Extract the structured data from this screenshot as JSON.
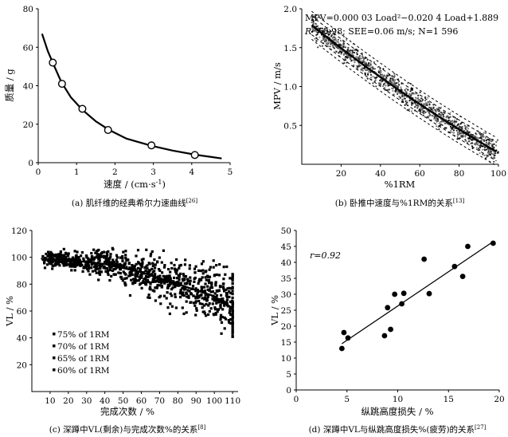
{
  "chart_data": [
    {
      "id": "a",
      "type": "scatter",
      "title": "",
      "caption": "(a) 肌纤维的经典希尔力速曲线",
      "caption_ref": "[26]",
      "xlabel_main": "速度 / (cm·s",
      "xlabel_sup": "-1",
      "xlabel_end": ")",
      "ylabel": "质量 / g",
      "xlim": [
        0,
        5
      ],
      "ylim": [
        0,
        80
      ],
      "xticks": [
        "0",
        "1",
        "2",
        "3",
        "4",
        "5"
      ],
      "yticks": [
        "0",
        "20",
        "40",
        "60",
        "80"
      ],
      "points": {
        "x": [
          0.38,
          0.62,
          1.15,
          1.82,
          2.95,
          4.08
        ],
        "y": [
          52,
          41,
          28,
          17,
          9,
          4
        ]
      },
      "curve": {
        "x": [
          0.1,
          0.25,
          0.4,
          0.6,
          0.85,
          1.15,
          1.5,
          1.85,
          2.3,
          2.95,
          3.5,
          4.08,
          4.5,
          4.78
        ],
        "y": [
          67,
          58,
          51,
          42,
          34,
          27.5,
          21.5,
          17,
          12.5,
          8.8,
          6.3,
          4.2,
          3,
          2.2
        ]
      }
    },
    {
      "id": "b",
      "type": "scatter",
      "caption": "(b) 卧推中速度与%1RM的关系",
      "caption_ref": "[13]",
      "xlabel": "%1RM",
      "ylabel": "MPV / m/s",
      "xlim": [
        0,
        100
      ],
      "ylim": [
        0,
        2.0
      ],
      "xticks": [
        "20",
        "40",
        "60",
        "80",
        "100"
      ],
      "yticks": [
        "0.5",
        "1.0",
        "1.5",
        "2.0"
      ],
      "equation_line1": "MPV=0.000 03 Load²−0.020 4 Load+1.889",
      "equation_line2_r": "R",
      "equation_line2_sup": "2",
      "equation_line2_rest": "=0.98; SEE=0.06 m/s; N=1 596",
      "fit": {
        "a": 3e-05,
        "b": -0.0204,
        "c": 1.889
      },
      "see": 0.06,
      "n": 1596,
      "x_range": [
        5,
        100
      ]
    },
    {
      "id": "c",
      "type": "scatter",
      "caption": "(c) 深蹲中VL(剩余)与完成次数%的关系",
      "caption_ref": "[8]",
      "xlabel": "完成次数 / %",
      "ylabel": "VL / %",
      "xlim": [
        0,
        113
      ],
      "ylim": [
        0,
        120
      ],
      "xticks": [
        "10",
        "20",
        "30",
        "40",
        "50",
        "60",
        "70",
        "80",
        "90",
        "100",
        "110"
      ],
      "yticks": [
        "20",
        "40",
        "60",
        "80",
        "100",
        "120"
      ],
      "legend": [
        "75% of 1RM",
        "70% of 1RM",
        "65% of 1RM",
        "60% of 1RM"
      ],
      "legend_position": "lower-left",
      "trend": {
        "x": [
          5,
          20,
          40,
          60,
          80,
          100,
          110
        ],
        "y": [
          99,
          98,
          95,
          89,
          80,
          71,
          62
        ]
      }
    },
    {
      "id": "d",
      "type": "scatter",
      "caption": "(d) 深蹲中VL与纵跳高度损失%(疲劳)的关系",
      "caption_ref": "[27]",
      "xlabel": "纵跳高度损失 / %",
      "ylabel": "VL / %",
      "xlim": [
        0,
        20
      ],
      "ylim": [
        0,
        50
      ],
      "xticks": [
        "0",
        "5",
        "10",
        "15",
        "20"
      ],
      "yticks": [
        "0",
        "5",
        "10",
        "15",
        "20",
        "25",
        "30",
        "35",
        "40",
        "45",
        "50"
      ],
      "annotation": "r=0.92",
      "points": {
        "x": [
          4.5,
          4.7,
          5.1,
          8.7,
          9.0,
          9.3,
          9.7,
          10.4,
          10.6,
          12.6,
          13.1,
          15.6,
          16.4,
          16.9,
          19.4
        ],
        "y": [
          13,
          18,
          16.3,
          17,
          25.8,
          19,
          30,
          27,
          30.3,
          41,
          30.2,
          38.7,
          35.6,
          45,
          46
        ]
      },
      "fit_line": {
        "x": [
          4.5,
          19.4
        ],
        "y": [
          14.5,
          46.5
        ]
      }
    }
  ]
}
